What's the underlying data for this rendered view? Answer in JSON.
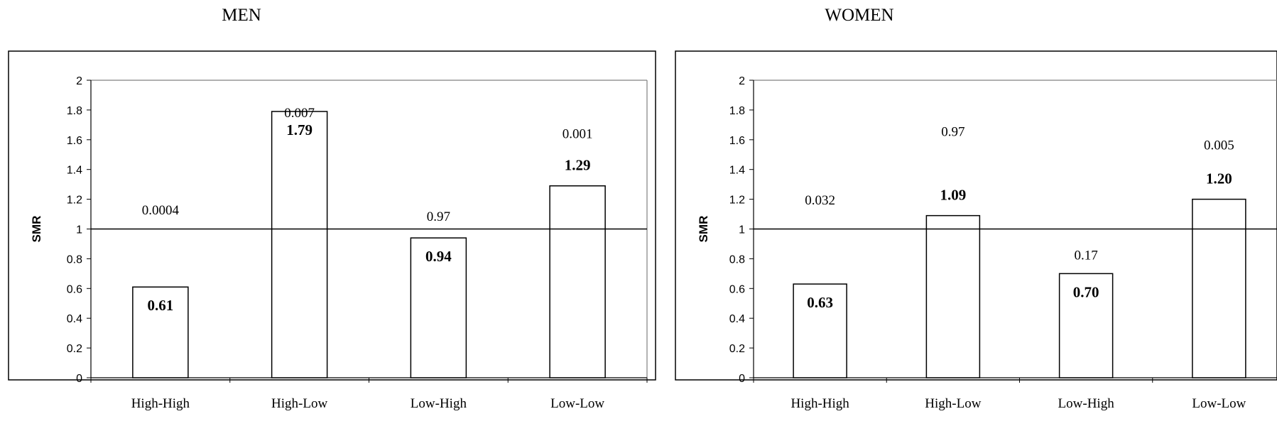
{
  "chart_data": [
    {
      "type": "bar",
      "title": "MEN",
      "ylabel": "SMR",
      "ylim": [
        0,
        2
      ],
      "yticks": [
        "0",
        "0.2",
        "0.4",
        "0.6",
        "0.8",
        "1",
        "1.2",
        "1.4",
        "1.6",
        "1.8",
        "2"
      ],
      "reference_line": 1,
      "categories": [
        "High-High",
        "High-Low",
        "Low-High",
        "Low-Low"
      ],
      "values": [
        0.61,
        1.79,
        0.94,
        1.29
      ],
      "value_labels": [
        "0.61",
        "1.79",
        "0.94",
        "1.29"
      ],
      "p_values": [
        "0.0004",
        "0.007",
        "0.97",
        "0.001"
      ]
    },
    {
      "type": "bar",
      "title": "WOMEN",
      "ylabel": "SMR",
      "ylim": [
        0,
        2
      ],
      "yticks": [
        "0",
        "0.2",
        "0.4",
        "0.6",
        "0.8",
        "1",
        "1.2",
        "1.4",
        "1.6",
        "1.8",
        "2"
      ],
      "reference_line": 1,
      "categories": [
        "High-High",
        "High-Low",
        "Low-High",
        "Low-Low"
      ],
      "values": [
        0.63,
        1.09,
        0.7,
        1.2
      ],
      "value_labels": [
        "0.63",
        "1.09",
        "0.70",
        "1.20"
      ],
      "p_values": [
        "0.032",
        "0.97",
        "0.17",
        "0.005"
      ]
    }
  ]
}
